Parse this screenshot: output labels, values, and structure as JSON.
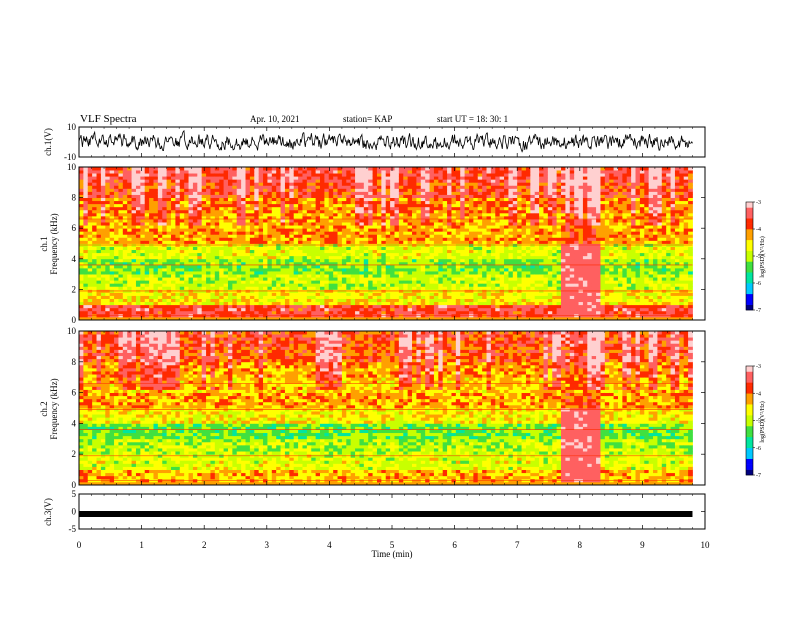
{
  "header": {
    "title": "VLF Spectra",
    "date": "Apr. 10, 2021",
    "station": "station= KAP",
    "start": "start  UT =   18: 30: 1"
  },
  "panels": {
    "ch1_wave_label": "ch.1(V)",
    "spec1_label_ch": "ch.1",
    "spec1_label_freq": "Frequency (kHz)",
    "spec2_label_ch": "ch.2",
    "spec2_label_freq": "Frequency (kHz)",
    "ch3_wave_label": "ch.3(V)",
    "xlabel": "Time (min)",
    "colorbar_label": "log(PSD)(V²/Hz)"
  },
  "colors": {
    "scale": [
      "#000080",
      "#0000ff",
      "#00c8ff",
      "#00e6a0",
      "#40e040",
      "#c8ff00",
      "#ffff00",
      "#ffa000",
      "#ff2a00",
      "#ff6060",
      "#ffd0d0"
    ]
  },
  "chart_data": [
    {
      "type": "line",
      "name": "ch.1 waveform",
      "xlim": [
        0,
        10
      ],
      "ylim": [
        -10,
        10
      ],
      "yticks": [
        "10",
        "-10"
      ],
      "x_units": "min",
      "note_values": "noisy signal roughly between -6 and 6 V over 0 to 9.8 min"
    },
    {
      "type": "heatmap",
      "name": "ch.1 spectrogram",
      "xlim": [
        0,
        10
      ],
      "ylim": [
        0,
        10
      ],
      "yticks": [
        "0",
        "2",
        "4",
        "6",
        "8",
        "10"
      ],
      "colorbar": {
        "range": [
          -7,
          -3
        ],
        "ticks": [
          "-3",
          "-4",
          "-5",
          "-6",
          "-7"
        ]
      },
      "data_end_min": 9.8,
      "band_rows": [
        {
          "f": 0.5,
          "v": -3.6
        },
        {
          "f": 1.5,
          "v": -4.6
        },
        {
          "f": 2.5,
          "v": -4.9
        },
        {
          "f": 3.5,
          "v": -5.2
        },
        {
          "f": 4.5,
          "v": -4.8
        },
        {
          "f": 5.5,
          "v": -4.2
        },
        {
          "f": 6.5,
          "v": -4.3
        },
        {
          "f": 7.5,
          "v": -4.1
        },
        {
          "f": 8.5,
          "v": -3.8
        },
        {
          "f": 9.5,
          "v": -3.6
        }
      ],
      "intense_interval_min": [
        7.65,
        8.3
      ]
    },
    {
      "type": "heatmap",
      "name": "ch.2 spectrogram",
      "xlim": [
        0,
        10
      ],
      "ylim": [
        0,
        10
      ],
      "yticks": [
        "0",
        "2",
        "4",
        "6",
        "8",
        "10"
      ],
      "colorbar": {
        "range": [
          -7,
          -3
        ],
        "ticks": [
          "-3",
          "-4",
          "-5",
          "-6",
          "-7"
        ]
      },
      "data_end_min": 9.8,
      "band_rows": [
        {
          "f": 0.5,
          "v": -4.3
        },
        {
          "f": 1.5,
          "v": -4.8
        },
        {
          "f": 2.5,
          "v": -5.0
        },
        {
          "f": 3.5,
          "v": -5.3
        },
        {
          "f": 4.5,
          "v": -4.6
        },
        {
          "f": 5.5,
          "v": -4.2
        },
        {
          "f": 6.5,
          "v": -4.4
        },
        {
          "f": 7.5,
          "v": -4.2
        },
        {
          "f": 8.5,
          "v": -3.9
        },
        {
          "f": 9.5,
          "v": -3.8
        }
      ],
      "intense_interval_min": [
        7.65,
        8.3
      ]
    },
    {
      "type": "line",
      "name": "ch.3 waveform",
      "xlim": [
        0,
        10
      ],
      "ylim": [
        -5,
        5
      ],
      "yticks": [
        "5",
        "0",
        "-5"
      ],
      "x": [
        0,
        9.8
      ],
      "y": [
        -0.7,
        -0.7
      ]
    },
    {
      "type": "axis",
      "xlabel": "Time (min)",
      "xticks": [
        "0",
        "1",
        "2",
        "3",
        "4",
        "5",
        "6",
        "7",
        "8",
        "9",
        "10"
      ]
    }
  ]
}
